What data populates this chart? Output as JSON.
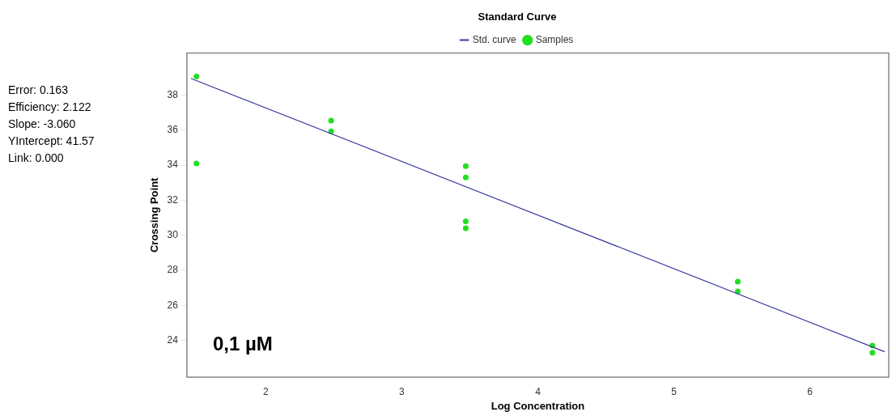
{
  "chart_data": {
    "type": "scatter",
    "title": "Standard Curve",
    "xlabel": "Log Concentration",
    "ylabel": "Crossing Point",
    "xlim": [
      1.42,
      6.58
    ],
    "xticks": [
      2,
      3,
      4,
      5,
      6
    ],
    "ylim": [
      21.9,
      40.4
    ],
    "yticks": [
      24,
      26,
      28,
      30,
      32,
      34,
      36,
      38
    ],
    "series": [
      {
        "name": "Std. curve",
        "type": "line",
        "color": "#3a3aa0",
        "marker": "none",
        "x": [
          1.45,
          6.55
        ],
        "values": [
          38.95,
          23.35
        ]
      },
      {
        "name": "Samples",
        "color": "#22dd22",
        "marker": "circle",
        "x": [
          1.49,
          1.49,
          2.48,
          2.48,
          3.47,
          3.47,
          3.47,
          3.47,
          5.47,
          5.47,
          6.46,
          6.46
        ],
        "values": [
          39.06,
          34.1,
          36.55,
          35.93,
          33.95,
          33.3,
          30.8,
          30.4,
          27.35,
          26.8,
          23.7,
          23.3
        ]
      }
    ],
    "legend": "top",
    "grid": false,
    "annotations": [
      "Error: 0.163",
      "Efficiency: 2.122",
      "Slope: -3.060",
      "YIntercept: 41.57",
      "Link: 0.000",
      "0,1 µM"
    ]
  }
}
